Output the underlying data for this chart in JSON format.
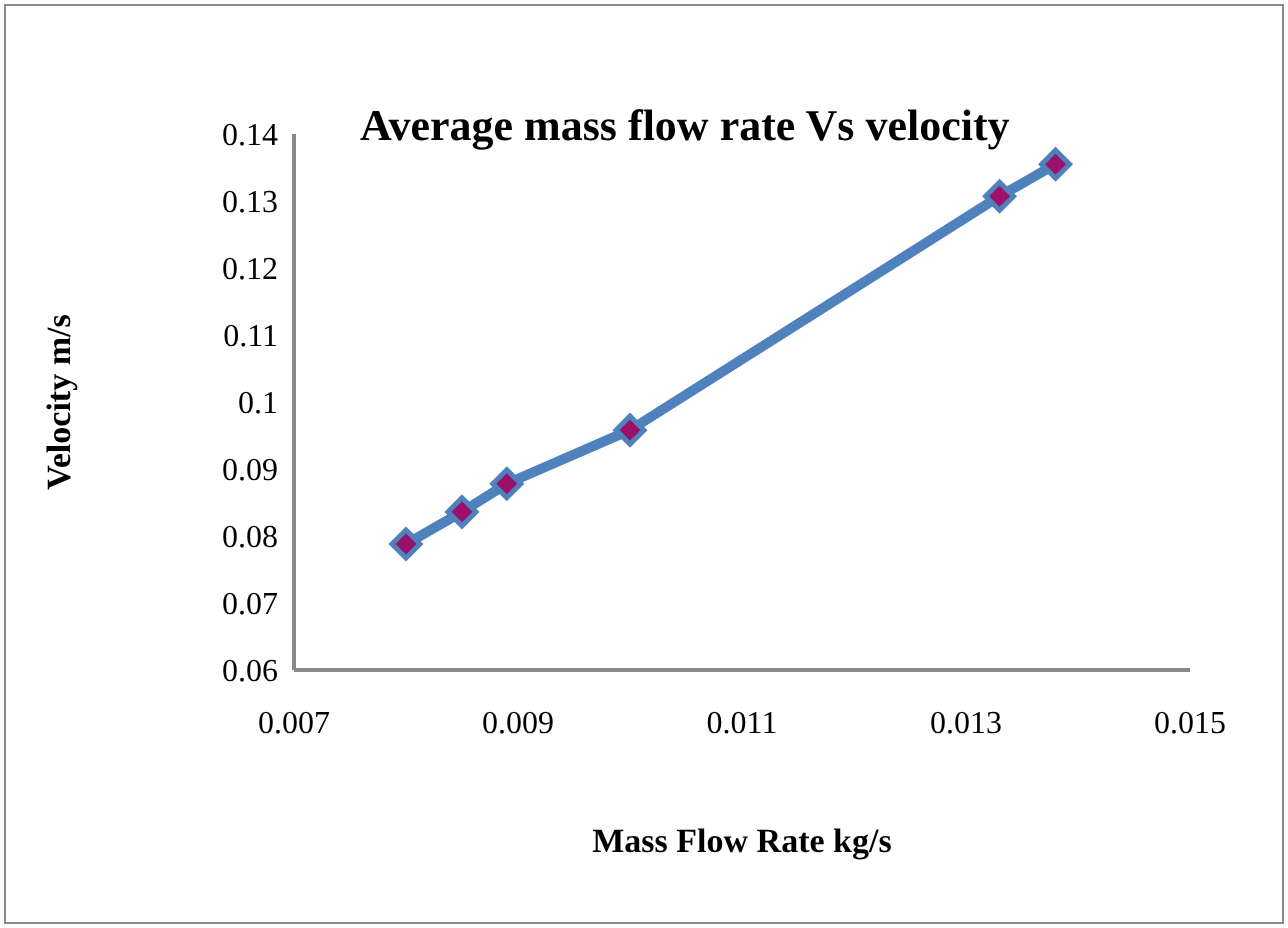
{
  "chart_data": {
    "type": "line",
    "title": "Average mass flow rate Vs velocity",
    "xlabel": "Mass Flow Rate kg/s",
    "ylabel": "Velocity m/s",
    "x": [
      0.008,
      0.0085,
      0.0089,
      0.01,
      0.0133,
      0.0138
    ],
    "series": [
      {
        "color": "#4f81bd",
        "values": [
          0.0788,
          0.0836,
          0.0878,
          0.0958,
          0.1307,
          0.1355
        ]
      }
    ],
    "xlim": [
      0.007,
      0.015
    ],
    "xticks": [
      0.007,
      0.009,
      0.011,
      0.013,
      0.015
    ],
    "ylim": [
      0.06,
      0.14
    ],
    "yticks": [
      0.06,
      0.07,
      0.08,
      0.09,
      0.1,
      0.11,
      0.12,
      0.13,
      0.14
    ],
    "grid": false,
    "legend": false,
    "marker": "diamond",
    "line_style": "solid"
  }
}
